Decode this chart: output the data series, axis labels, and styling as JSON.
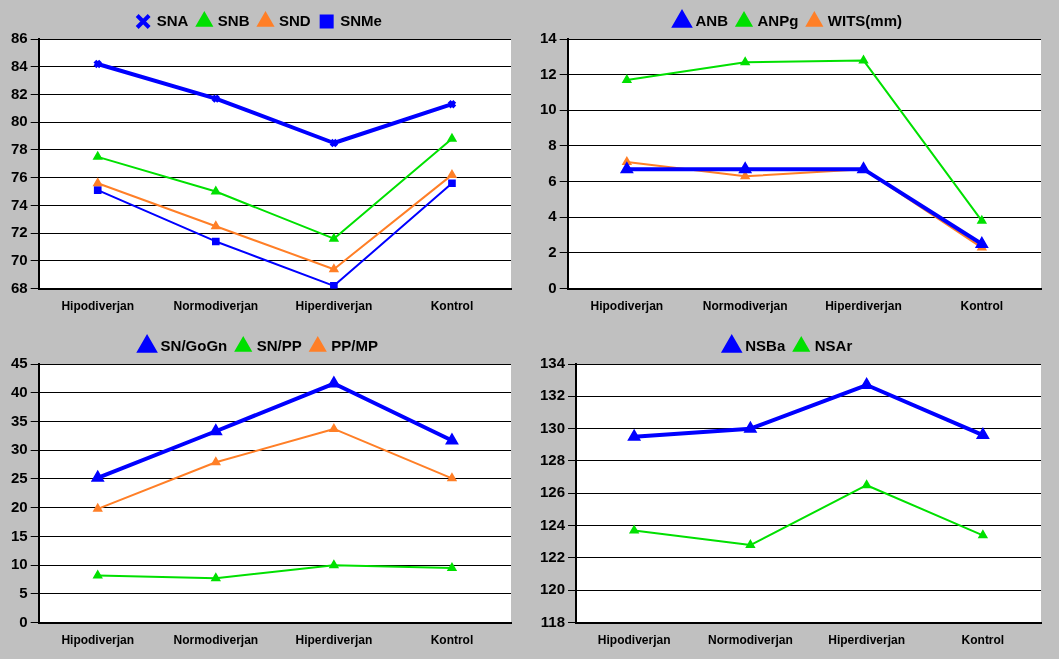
{
  "chart_data": [
    {
      "type": "line",
      "categories": [
        "Hipodiverjan",
        "Normodiverjan",
        "Hiperdiverjan",
        "Kontrol"
      ],
      "ylim": [
        68,
        86
      ],
      "yticks": [
        68,
        70,
        72,
        74,
        76,
        78,
        80,
        82,
        84,
        86
      ],
      "grid": "y",
      "legend": "top",
      "marker": "triangle",
      "series": [
        {
          "name": "SNA",
          "color": "#0000ff",
          "marker": "cross",
          "values": [
            84.2,
            81.7,
            78.5,
            81.3
          ]
        },
        {
          "name": "SNB",
          "color": "#00e000",
          "values": [
            77.5,
            75.0,
            71.6,
            78.8
          ]
        },
        {
          "name": "SND",
          "color": "#ff7f27",
          "values": [
            75.6,
            72.5,
            69.4,
            76.2
          ]
        },
        {
          "name": "SNMe",
          "color": "#0000ff",
          "marker": "square",
          "values": [
            75.1,
            71.4,
            68.2,
            75.6
          ]
        }
      ]
    },
    {
      "type": "line",
      "categories": [
        "Hipodiverjan",
        "Normodiverjan",
        "Hiperdiverjan",
        "Kontrol"
      ],
      "ylim": [
        0,
        14
      ],
      "yticks": [
        0,
        2,
        4,
        6,
        8,
        10,
        12,
        14
      ],
      "grid": "y",
      "legend": "top",
      "marker": "triangle",
      "series": [
        {
          "name": "ANB",
          "color": "#0000ff",
          "values": [
            6.7,
            6.7,
            6.7,
            2.5
          ]
        },
        {
          "name": "ANPg",
          "color": "#00e000",
          "values": [
            11.7,
            12.7,
            12.8,
            3.8
          ]
        },
        {
          "name": "WITS(mm)",
          "color": "#ff7f27",
          "values": [
            7.1,
            6.3,
            6.7,
            2.3
          ]
        }
      ]
    },
    {
      "type": "line",
      "categories": [
        "Hipodiverjan",
        "Normodiverjan",
        "Hiperdiverjan",
        "Kontrol"
      ],
      "ylim": [
        0,
        45
      ],
      "yticks": [
        0,
        5,
        10,
        15,
        20,
        25,
        30,
        35,
        40,
        45
      ],
      "grid": "y",
      "legend": "top",
      "marker": "triangle",
      "series": [
        {
          "name": "SN/GoGn",
          "color": "#0000ff",
          "values": [
            25.2,
            33.3,
            41.6,
            31.7
          ]
        },
        {
          "name": "SN/PP",
          "color": "#00e000",
          "values": [
            8.2,
            7.7,
            10.0,
            9.5
          ]
        },
        {
          "name": "PP/MP",
          "color": "#ff7f27",
          "values": [
            19.8,
            27.9,
            33.7,
            25.1
          ]
        }
      ]
    },
    {
      "type": "line",
      "categories": [
        "Hipodiverjan",
        "Normodiverjan",
        "Hiperdiverjan",
        "Kontrol"
      ],
      "ylim": [
        118,
        134
      ],
      "yticks": [
        118,
        120,
        122,
        124,
        126,
        128,
        130,
        132,
        134
      ],
      "grid": "y",
      "legend": "top",
      "marker": "triangle",
      "series": [
        {
          "name": "NSBa",
          "color": "#0000ff",
          "values": [
            129.5,
            130.0,
            132.7,
            129.6
          ]
        },
        {
          "name": "NSAr",
          "color": "#00e000",
          "values": [
            123.7,
            122.8,
            126.5,
            123.4
          ]
        }
      ]
    }
  ]
}
